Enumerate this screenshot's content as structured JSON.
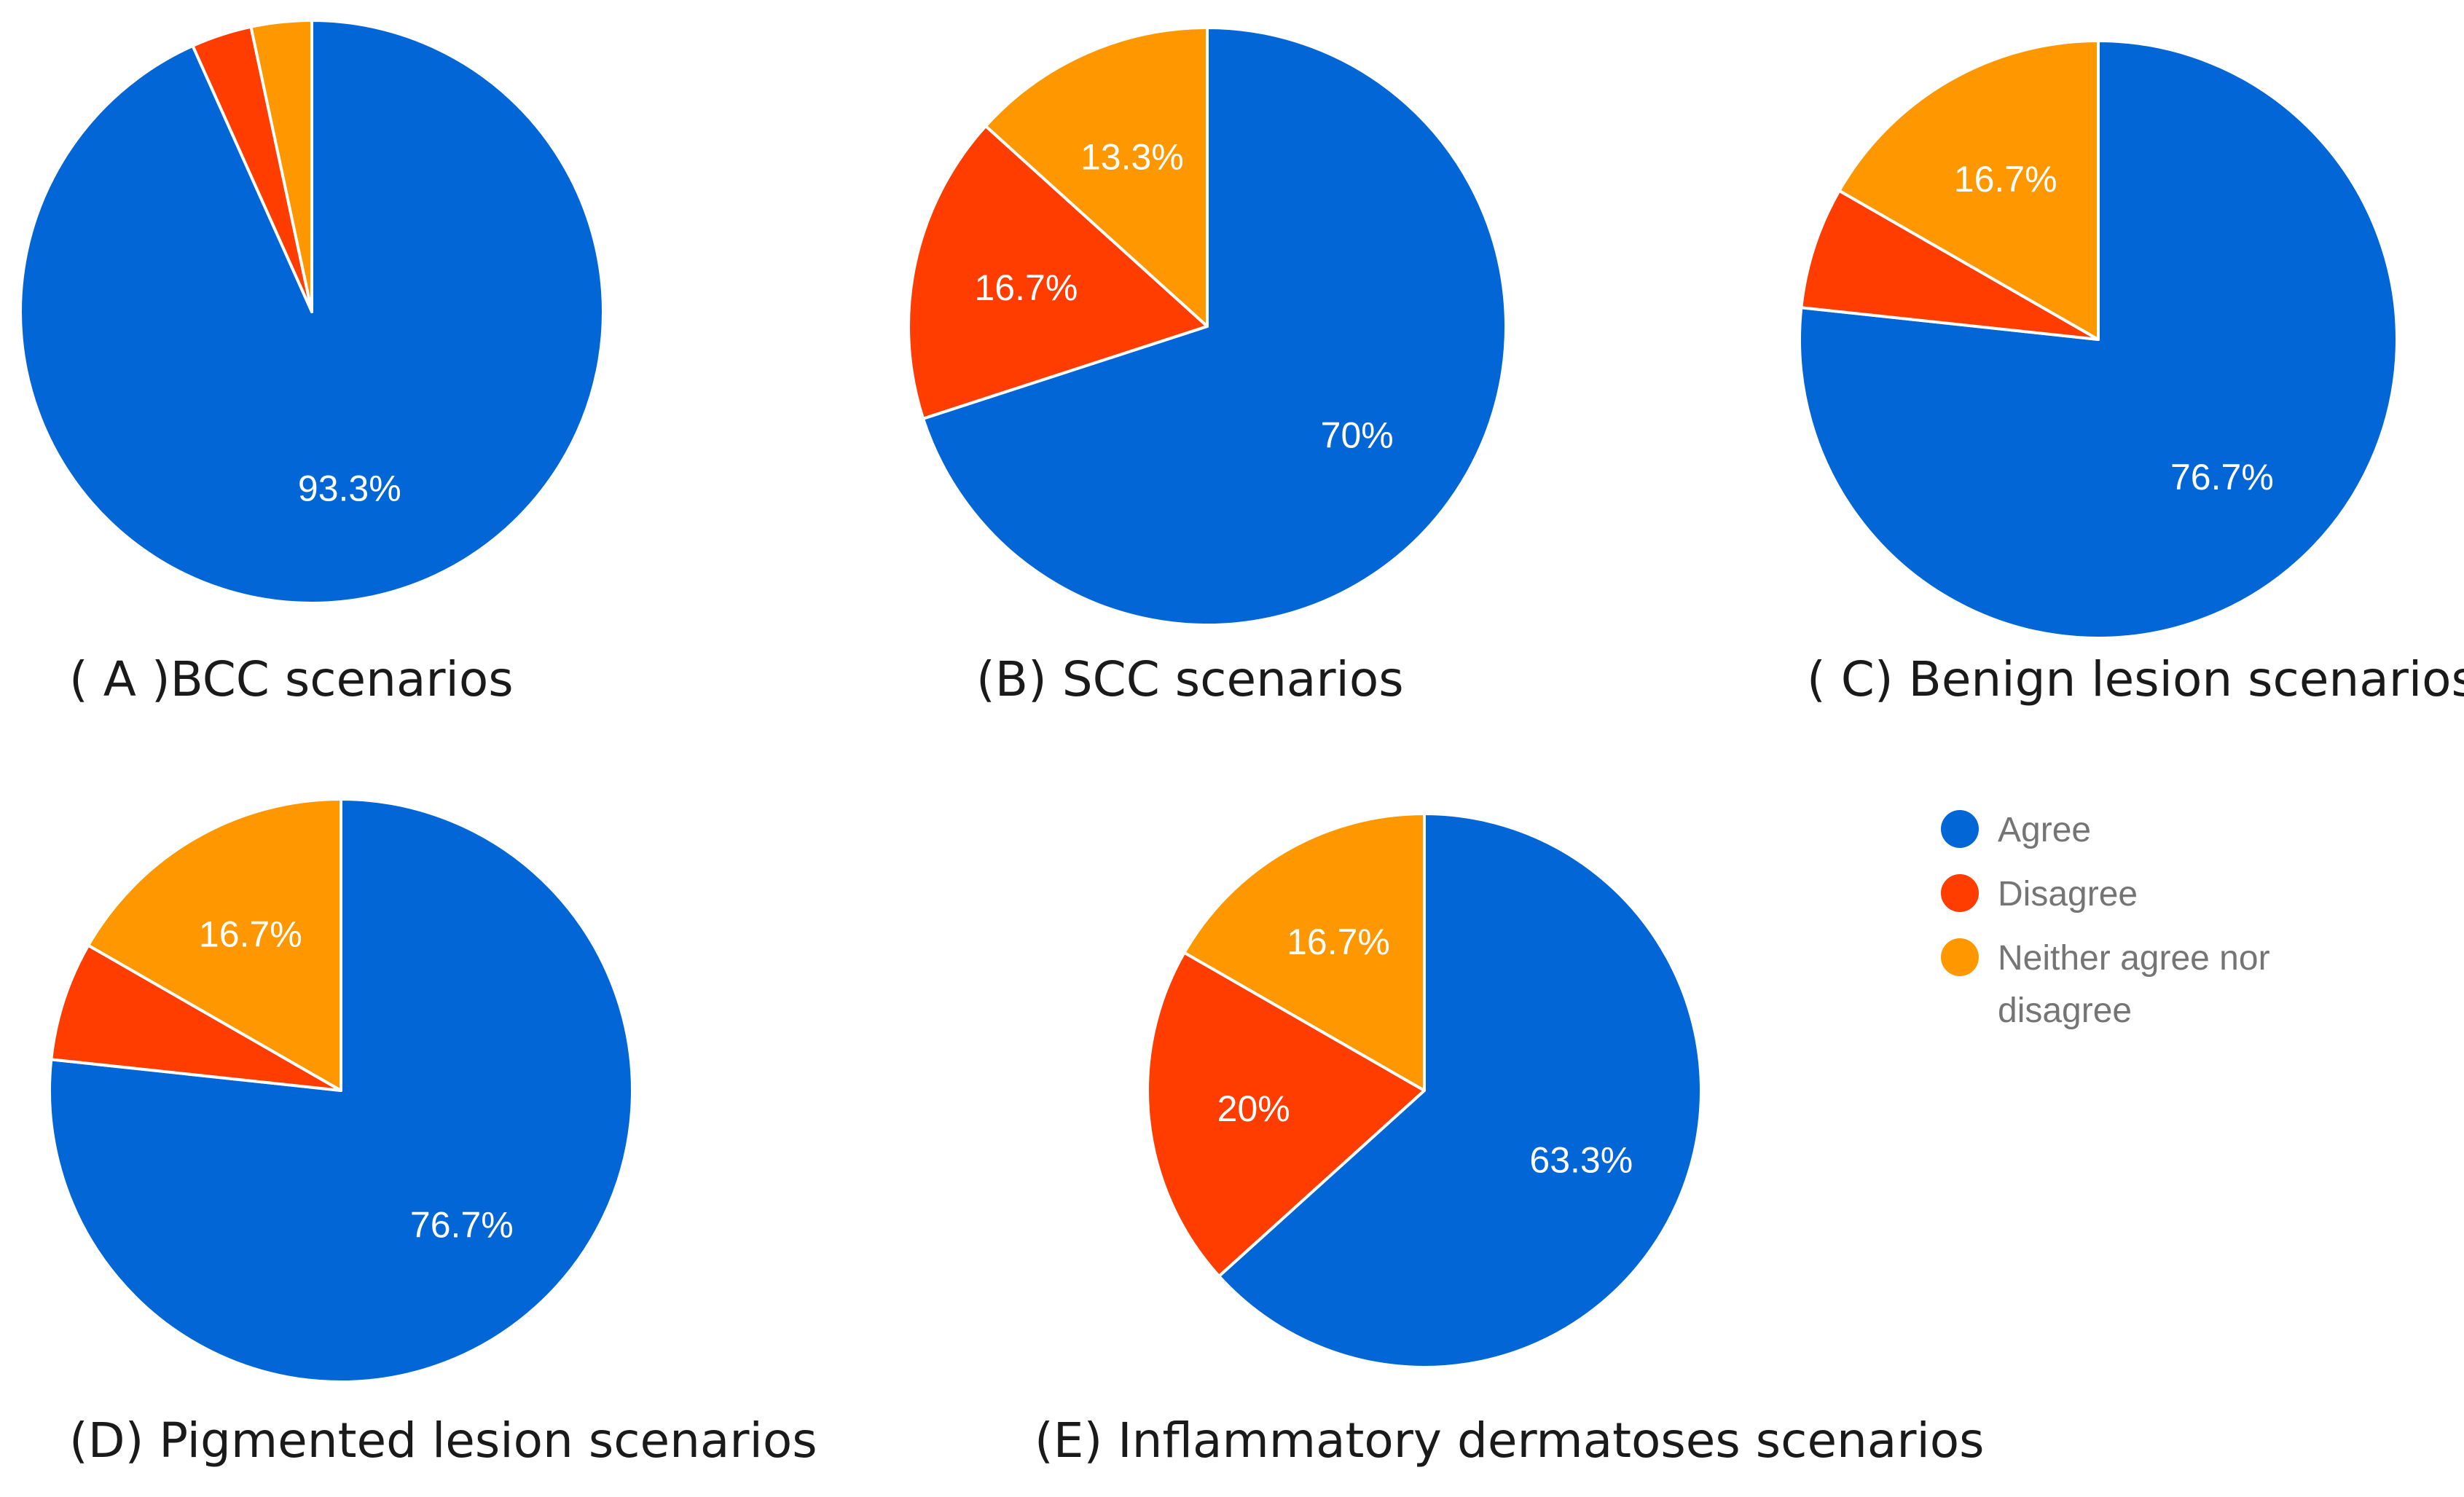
{
  "chart_data": [
    {
      "type": "pie",
      "caption": "( A )BCC scenarios",
      "categories": [
        "Agree",
        "Disagree",
        "Neither agree nor disagree"
      ],
      "values": [
        93.3,
        3.35,
        3.35
      ],
      "labels": [
        "93.3%",
        "",
        ""
      ]
    },
    {
      "type": "pie",
      "caption": "(B) SCC scenarios",
      "categories": [
        "Agree",
        "Disagree",
        "Neither agree nor disagree"
      ],
      "values": [
        70,
        16.7,
        13.3
      ],
      "labels": [
        "70%",
        "16.7%",
        "13.3%"
      ]
    },
    {
      "type": "pie",
      "caption": "( C) Benign lesion scenarios",
      "categories": [
        "Agree",
        "Disagree",
        "Neither agree nor disagree"
      ],
      "values": [
        76.7,
        6.6,
        16.7
      ],
      "labels": [
        "76.7%",
        "",
        "16.7%"
      ]
    },
    {
      "type": "pie",
      "caption": "(D) Pigmented lesion scenarios",
      "categories": [
        "Agree",
        "Disagree",
        "Neither agree nor disagree"
      ],
      "values": [
        76.7,
        6.6,
        16.7
      ],
      "labels": [
        "76.7%",
        "",
        "16.7%"
      ]
    },
    {
      "type": "pie",
      "caption": "(E) Inflammatory dermatoses scenarios",
      "categories": [
        "Agree",
        "Disagree",
        "Neither agree nor disagree"
      ],
      "values": [
        63.3,
        20,
        16.7
      ],
      "labels": [
        "63.3%",
        "20%",
        "16.7%"
      ]
    }
  ],
  "legend": {
    "placement": "right",
    "items": [
      {
        "label": "Agree",
        "color": "#0366d6"
      },
      {
        "label": "Disagree",
        "color": "#ff3d00"
      },
      {
        "label": "Neither agree nor",
        "label_line2": "disagree",
        "color": "#ff9800"
      }
    ]
  },
  "colors": {
    "agree": "#0366d6",
    "disagree": "#ff3d00",
    "neither": "#ff9800",
    "background": "#ffffff"
  }
}
